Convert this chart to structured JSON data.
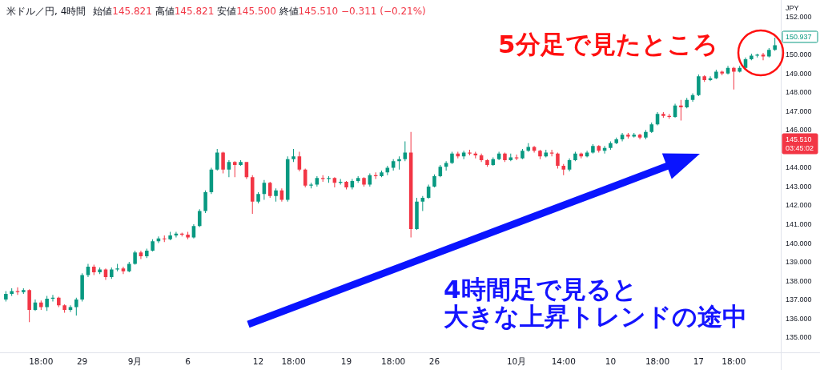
{
  "chart_data": {
    "type": "candlestick",
    "title": "米ドル／円, 4時間",
    "subtitle": "始値145.821 高値145.821 安値145.500 終値145.510 −0.311 (−0.21%)",
    "ylabel": "JPY",
    "categories": [
      null,
      null,
      null,
      null,
      null,
      null,
      "18:00",
      null,
      null,
      null,
      null,
      null,
      null,
      "29",
      null,
      null,
      null,
      null,
      null,
      null,
      null,
      null,
      "9月",
      null,
      null,
      null,
      null,
      null,
      null,
      null,
      null,
      "6",
      null,
      null,
      null,
      null,
      null,
      null,
      null,
      null,
      null,
      null,
      null,
      "12",
      null,
      null,
      null,
      null,
      null,
      "18:00",
      null,
      null,
      null,
      null,
      null,
      null,
      null,
      null,
      "19",
      null,
      null,
      null,
      null,
      null,
      null,
      null,
      "18:00",
      null,
      null,
      null,
      null,
      null,
      null,
      "26",
      null,
      null,
      null,
      null,
      null,
      null,
      null,
      null,
      null,
      null,
      null,
      null,
      null,
      "10月",
      null,
      null,
      null,
      null,
      null,
      null,
      null,
      "14:00",
      null,
      null,
      null,
      null,
      null,
      null,
      null,
      "10",
      null,
      null,
      null,
      null,
      null,
      null,
      null,
      "18:00",
      null,
      null,
      null,
      null,
      null,
      null,
      "17",
      null,
      null,
      null,
      null,
      null,
      "18:00",
      null,
      null,
      null,
      null,
      null,
      null,
      null
    ],
    "ohlc": [
      [
        137.0,
        137.45,
        136.9,
        137.3
      ],
      [
        137.3,
        137.6,
        137.2,
        137.45
      ],
      [
        137.45,
        137.65,
        137.25,
        137.4
      ],
      [
        137.4,
        137.6,
        137.3,
        137.5
      ],
      [
        137.5,
        137.55,
        135.8,
        136.45
      ],
      [
        136.45,
        137.0,
        136.4,
        136.85
      ],
      [
        136.85,
        136.95,
        136.45,
        136.6
      ],
      [
        136.6,
        137.2,
        136.4,
        137.05
      ],
      [
        137.05,
        137.25,
        136.9,
        137.1
      ],
      [
        137.1,
        137.15,
        136.6,
        136.7
      ],
      [
        136.7,
        136.75,
        136.3,
        136.45
      ],
      [
        136.45,
        136.7,
        136.35,
        136.6
      ],
      [
        136.6,
        137.1,
        136.15,
        137.0
      ],
      [
        137.0,
        138.4,
        136.9,
        138.3
      ],
      [
        138.3,
        138.9,
        138.2,
        138.75
      ],
      [
        138.75,
        138.85,
        138.3,
        138.45
      ],
      [
        138.45,
        138.7,
        138.35,
        138.6
      ],
      [
        138.6,
        138.65,
        138.05,
        138.2
      ],
      [
        138.2,
        138.7,
        138.1,
        138.6
      ],
      [
        138.6,
        138.9,
        138.5,
        138.65
      ],
      [
        138.65,
        138.75,
        138.35,
        138.5
      ],
      [
        138.5,
        139.0,
        138.45,
        138.9
      ],
      [
        138.9,
        139.6,
        138.85,
        139.5
      ],
      [
        139.5,
        139.6,
        139.15,
        139.3
      ],
      [
        139.3,
        139.7,
        139.2,
        139.6
      ],
      [
        139.6,
        140.2,
        139.55,
        140.1
      ],
      [
        140.1,
        140.35,
        140.0,
        140.25
      ],
      [
        140.25,
        140.4,
        140.05,
        140.2
      ],
      [
        140.2,
        140.6,
        140.15,
        140.4
      ],
      [
        140.4,
        140.6,
        140.3,
        140.5
      ],
      [
        140.5,
        140.55,
        140.35,
        140.45
      ],
      [
        140.45,
        140.6,
        140.2,
        140.3
      ],
      [
        140.3,
        141.0,
        140.25,
        140.9
      ],
      [
        140.9,
        141.8,
        140.85,
        141.7
      ],
      [
        141.7,
        142.8,
        141.6,
        142.7
      ],
      [
        142.7,
        144.0,
        142.6,
        143.9
      ],
      [
        143.9,
        145.0,
        143.85,
        144.8
      ],
      [
        144.8,
        144.85,
        143.7,
        143.9
      ],
      [
        143.9,
        144.4,
        143.5,
        144.3
      ],
      [
        144.3,
        144.35,
        143.5,
        144.15
      ],
      [
        144.15,
        144.4,
        144.1,
        144.3
      ],
      [
        144.3,
        144.3,
        143.4,
        143.5
      ],
      [
        143.5,
        143.6,
        141.55,
        142.2
      ],
      [
        142.2,
        142.7,
        142.1,
        142.6
      ],
      [
        142.6,
        143.35,
        142.3,
        143.2
      ],
      [
        143.2,
        143.25,
        142.4,
        142.5
      ],
      [
        142.5,
        142.9,
        142.2,
        142.8
      ],
      [
        142.8,
        142.9,
        142.2,
        142.3
      ],
      [
        142.3,
        144.6,
        142.2,
        144.45
      ],
      [
        144.45,
        145.0,
        144.3,
        144.6
      ],
      [
        144.6,
        144.85,
        143.8,
        143.9
      ],
      [
        143.9,
        143.95,
        142.95,
        143.05
      ],
      [
        143.05,
        143.2,
        142.9,
        143.1
      ],
      [
        143.1,
        143.55,
        143.0,
        143.45
      ],
      [
        143.45,
        143.6,
        143.25,
        143.4
      ],
      [
        143.4,
        143.55,
        143.2,
        143.45
      ],
      [
        143.45,
        143.5,
        142.95,
        143.2
      ],
      [
        143.2,
        143.4,
        143.1,
        143.25
      ],
      [
        143.25,
        143.3,
        142.85,
        142.95
      ],
      [
        142.95,
        143.4,
        142.85,
        143.3
      ],
      [
        143.3,
        143.55,
        143.2,
        143.45
      ],
      [
        143.45,
        143.5,
        143.0,
        143.1
      ],
      [
        143.1,
        143.7,
        143.0,
        143.6
      ],
      [
        143.6,
        143.75,
        143.4,
        143.55
      ],
      [
        143.55,
        143.85,
        143.5,
        143.75
      ],
      [
        143.75,
        144.1,
        143.6,
        144.0
      ],
      [
        144.0,
        144.45,
        143.85,
        144.35
      ],
      [
        144.35,
        144.6,
        143.9,
        144.45
      ],
      [
        144.45,
        145.4,
        144.35,
        144.8
      ],
      [
        144.8,
        145.9,
        140.3,
        140.75
      ],
      [
        140.75,
        142.4,
        140.7,
        142.2
      ],
      [
        142.2,
        142.5,
        141.7,
        142.4
      ],
      [
        142.4,
        143.1,
        142.35,
        143.0
      ],
      [
        143.0,
        143.65,
        142.95,
        143.55
      ],
      [
        143.55,
        144.15,
        143.5,
        144.05
      ],
      [
        144.05,
        144.35,
        143.85,
        144.25
      ],
      [
        144.25,
        144.85,
        144.2,
        144.75
      ],
      [
        144.75,
        144.85,
        144.5,
        144.6
      ],
      [
        144.6,
        144.9,
        144.45,
        144.8
      ],
      [
        144.8,
        144.95,
        144.65,
        144.75
      ],
      [
        144.75,
        144.85,
        144.5,
        144.65
      ],
      [
        144.65,
        144.75,
        144.3,
        144.4
      ],
      [
        144.4,
        144.45,
        144.05,
        144.15
      ],
      [
        144.15,
        144.55,
        144.1,
        144.45
      ],
      [
        144.45,
        144.85,
        144.4,
        144.75
      ],
      [
        144.75,
        144.8,
        144.3,
        144.4
      ],
      [
        144.4,
        144.75,
        144.35,
        144.55
      ],
      [
        144.55,
        144.7,
        144.4,
        144.5
      ],
      [
        144.5,
        145.0,
        144.45,
        144.9
      ],
      [
        144.9,
        145.3,
        144.85,
        145.1
      ],
      [
        145.1,
        145.15,
        144.8,
        144.9
      ],
      [
        144.9,
        144.95,
        144.45,
        144.6
      ],
      [
        144.6,
        144.95,
        144.55,
        144.8
      ],
      [
        144.8,
        144.95,
        144.6,
        144.75
      ],
      [
        144.75,
        144.8,
        143.95,
        144.1
      ],
      [
        144.1,
        144.2,
        143.6,
        143.9
      ],
      [
        143.9,
        144.5,
        143.8,
        144.4
      ],
      [
        144.4,
        144.85,
        144.35,
        144.75
      ],
      [
        144.75,
        144.8,
        144.5,
        144.6
      ],
      [
        144.6,
        144.9,
        144.55,
        144.8
      ],
      [
        144.8,
        145.25,
        144.75,
        145.15
      ],
      [
        145.15,
        145.2,
        144.8,
        144.9
      ],
      [
        144.9,
        145.15,
        144.75,
        145.05
      ],
      [
        145.05,
        145.4,
        144.95,
        145.3
      ],
      [
        145.3,
        145.6,
        145.25,
        145.5
      ],
      [
        145.5,
        145.85,
        145.4,
        145.75
      ],
      [
        145.75,
        145.85,
        145.55,
        145.65
      ],
      [
        145.65,
        145.85,
        145.6,
        145.75
      ],
      [
        145.75,
        145.8,
        145.5,
        145.6
      ],
      [
        145.6,
        146.0,
        145.5,
        145.9
      ],
      [
        145.9,
        146.4,
        145.85,
        146.3
      ],
      [
        146.3,
        146.95,
        146.25,
        146.85
      ],
      [
        146.85,
        146.95,
        146.65,
        146.75
      ],
      [
        146.75,
        146.85,
        146.6,
        146.7
      ],
      [
        146.7,
        147.4,
        146.65,
        147.3
      ],
      [
        147.3,
        147.6,
        146.5,
        147.2
      ],
      [
        147.2,
        147.7,
        147.15,
        147.6
      ],
      [
        147.6,
        147.95,
        147.5,
        147.85
      ],
      [
        147.85,
        148.95,
        147.8,
        148.85
      ],
      [
        148.85,
        148.9,
        148.55,
        148.65
      ],
      [
        148.65,
        148.85,
        148.6,
        148.75
      ],
      [
        148.75,
        149.2,
        148.7,
        149.1
      ],
      [
        149.1,
        149.15,
        148.9,
        149.0
      ],
      [
        149.0,
        149.4,
        148.95,
        149.3
      ],
      [
        149.3,
        149.35,
        148.15,
        149.1
      ],
      [
        149.1,
        149.4,
        149.05,
        149.3
      ],
      [
        149.3,
        149.85,
        149.25,
        149.75
      ],
      [
        149.75,
        150.05,
        149.7,
        149.95
      ],
      [
        149.95,
        150.05,
        149.85,
        150.0
      ],
      [
        150.0,
        150.1,
        149.7,
        149.9
      ],
      [
        149.9,
        150.35,
        149.85,
        150.25
      ],
      [
        150.25,
        150.9,
        150.2,
        150.5
      ]
    ],
    "colors": [
      "#089981",
      "#089981",
      "#f23645",
      "#089981",
      "#f23645",
      "#089981",
      "#f23645",
      "#089981",
      "#089981",
      "#f23645",
      "#f23645",
      "#089981",
      "#089981",
      "#089981",
      "#089981",
      "#f23645",
      "#089981",
      "#f23645",
      "#089981",
      "#089981",
      "#f23645",
      "#089981",
      "#089981",
      "#f23645",
      "#089981",
      "#089981",
      "#089981",
      "#f23645",
      "#089981",
      "#089981",
      "#f23645",
      "#f23645",
      "#089981",
      "#089981",
      "#089981",
      "#089981",
      "#089981",
      "#f23645",
      "#089981",
      "#f23645",
      "#089981",
      "#f23645",
      "#f23645",
      "#089981",
      "#089981",
      "#f23645",
      "#089981",
      "#f23645",
      "#089981",
      "#089981",
      "#f23645",
      "#f23645",
      "#089981",
      "#089981",
      "#f23645",
      "#089981",
      "#f23645",
      "#089981",
      "#f23645",
      "#089981",
      "#089981",
      "#f23645",
      "#089981",
      "#f23645",
      "#089981",
      "#089981",
      "#089981",
      "#089981",
      "#089981",
      "#f23645",
      "#089981",
      "#089981",
      "#089981",
      "#089981",
      "#089981",
      "#089981",
      "#089981",
      "#f23645",
      "#089981",
      "#f23645",
      "#f23645",
      "#f23645",
      "#f23645",
      "#089981",
      "#089981",
      "#f23645",
      "#089981",
      "#f23645",
      "#089981",
      "#089981",
      "#f23645",
      "#f23645",
      "#089981",
      "#f23645",
      "#f23645",
      "#f23645",
      "#089981",
      "#089981",
      "#f23645",
      "#089981",
      "#089981",
      "#f23645",
      "#089981",
      "#089981",
      "#089981",
      "#089981",
      "#f23645",
      "#089981",
      "#f23645",
      "#089981",
      "#089981",
      "#089981",
      "#f23645",
      "#f23645",
      "#089981",
      "#f23645",
      "#089981",
      "#089981",
      "#089981",
      "#f23645",
      "#089981",
      "#089981",
      "#f23645",
      "#089981",
      "#f23645",
      "#089981",
      "#089981",
      "#089981",
      "#089981",
      "#f23645",
      "#089981",
      "#089981"
    ],
    "ylim": [
      134.2,
      152.9
    ],
    "yticks": [
      {
        "value": 135,
        "label": "135.000"
      },
      {
        "value": 136,
        "label": "136.000"
      },
      {
        "value": 137,
        "label": "137.000"
      },
      {
        "value": 138,
        "label": "138.000"
      },
      {
        "value": 139,
        "label": "139.000"
      },
      {
        "value": 140,
        "label": "140.000"
      },
      {
        "value": 141,
        "label": "141.000"
      },
      {
        "value": 142,
        "label": "142.000"
      },
      {
        "value": 143,
        "label": "143.000"
      },
      {
        "value": 144,
        "label": "144.000"
      },
      {
        "value": 146,
        "label": "146.000"
      },
      {
        "value": 147,
        "label": "147.000"
      },
      {
        "value": 148,
        "label": "148.000"
      },
      {
        "value": 149,
        "label": "149.000"
      },
      {
        "value": 150,
        "label": "150.000"
      },
      {
        "value": 152,
        "label": "152.000"
      }
    ],
    "annotations": [
      "5分足で見たところ",
      "4時間足で見ると",
      "大きな上昇トレンドの途中",
      "150.937",
      "145.510",
      "03:45:02"
    ]
  }
}
